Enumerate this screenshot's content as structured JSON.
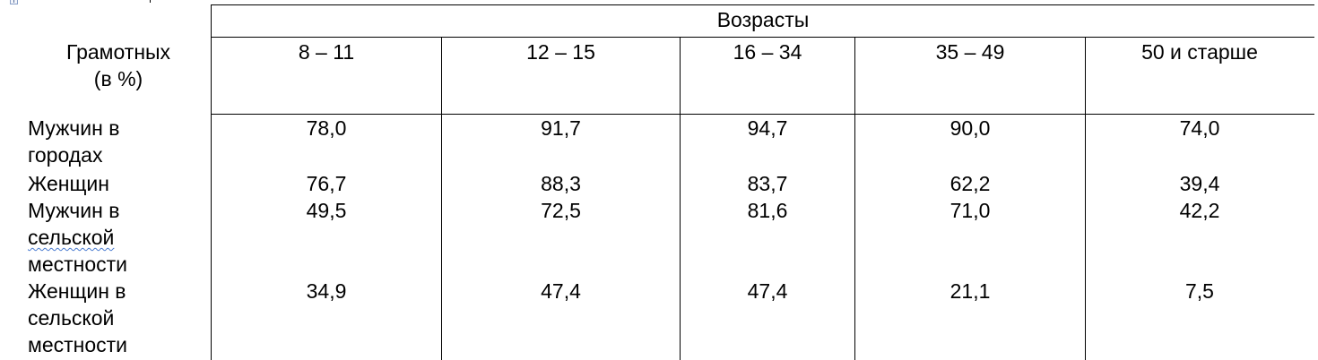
{
  "table": {
    "stub_header": [
      "Грамотных",
      "(в %)"
    ],
    "group_header": "Возрасты",
    "age_groups": [
      "8 – 11",
      "12 – 15",
      "16 – 34",
      "35 – 49",
      "50 и старше"
    ],
    "rows": [
      {
        "label_lines": [
          "Мужчин в",
          "городах"
        ],
        "values": [
          "78,0",
          "91,7",
          "94,7",
          "90,0",
          "74,0"
        ]
      },
      {
        "label_lines": [
          "Женщин"
        ],
        "values": [
          "76,7",
          "88,3",
          "83,7",
          "62,2",
          "39,4"
        ]
      },
      {
        "label_lines": [
          "Мужчин в",
          "сельской",
          "местности"
        ],
        "values": [
          "49,5",
          "72,5",
          "81,6",
          "71,0",
          "42,2"
        ]
      },
      {
        "label_lines": [
          "Женщин в",
          "сельской",
          "местности"
        ],
        "values": [
          "34,9",
          "47,4",
          "47,4",
          "21,1",
          "7,5"
        ]
      }
    ]
  }
}
